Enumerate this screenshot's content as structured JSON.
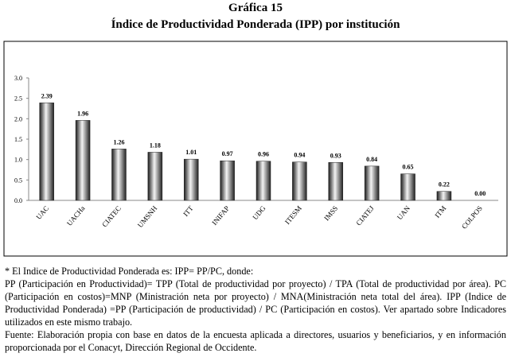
{
  "chart_data": {
    "type": "bar",
    "title": "Gráfica 15",
    "subtitle": "Índice de Productividad Ponderada (IPP) por institución",
    "categories": [
      "UAC",
      "UACHa",
      "CIATEC",
      "UMSNH",
      "ITT",
      "INIFAP",
      "UDG",
      "ITESM",
      "IMSS",
      "CIATEJ",
      "UAN",
      "ITM",
      "COLPOS"
    ],
    "values": [
      2.39,
      1.96,
      1.26,
      1.18,
      1.01,
      0.97,
      0.96,
      0.94,
      0.93,
      0.84,
      0.65,
      0.22,
      0
    ],
    "value_labels": [
      "2.39",
      "1.96",
      "1.26",
      "1.18",
      "1.01",
      "0.97",
      "0.96",
      "0.94",
      "0.93",
      "0.84",
      "0.65",
      "0.22",
      "0.00"
    ],
    "ylim": [
      0,
      3
    ],
    "yticks": [
      {
        "value": 0,
        "label": "0.0"
      },
      {
        "value": 0.5,
        "label": "0.5"
      },
      {
        "value": 1,
        "label": "1.0"
      },
      {
        "value": 1.5,
        "label": "1.5"
      },
      {
        "value": 2,
        "label": "2.0"
      },
      {
        "value": 2.5,
        "label": "2.5"
      },
      {
        "value": 3,
        "label": "3.0"
      }
    ],
    "grid": false
  },
  "notes": [
    "* El Indice de Productividad Ponderada es: IPP= PP/PC, donde:",
    "PP (Participación en Productividad)= TPP (Total de productividad por proyecto) / TPA (Total de productividad por área). PC (Participación en costos)=MNP (Ministración neta por proyecto) / MNA(Ministración neta total del área). IPP (Indice de Productividad Ponderada) =PP (Participación de productividad) / PC (Participación en costos). Ver apartado sobre Indicadores utilizados en este mismo trabajo.",
    "Fuente: Elaboración propia con base en datos de la encuesta aplicada a directores, usuarios y beneficiarios, y en información proporcionada por el Conacyt, Dirección Regional de Occidente."
  ]
}
